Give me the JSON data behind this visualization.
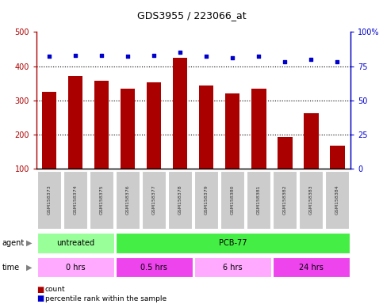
{
  "title": "GDS3955 / 223066_at",
  "samples": [
    "GSM158373",
    "GSM158374",
    "GSM158375",
    "GSM158376",
    "GSM158377",
    "GSM158378",
    "GSM158379",
    "GSM158380",
    "GSM158381",
    "GSM158382",
    "GSM158383",
    "GSM158384"
  ],
  "counts": [
    325,
    370,
    358,
    335,
    352,
    425,
    343,
    320,
    335,
    193,
    263,
    168
  ],
  "percentiles": [
    82,
    83,
    83,
    82,
    83,
    85,
    82,
    81,
    82,
    78,
    80,
    78
  ],
  "bar_color": "#AA0000",
  "dot_color": "#0000CC",
  "left_ylim": [
    100,
    500
  ],
  "left_yticks": [
    100,
    200,
    300,
    400,
    500
  ],
  "right_ylim": [
    0,
    100
  ],
  "right_yticks": [
    0,
    25,
    50,
    75,
    100
  ],
  "right_yticklabels": [
    "0",
    "25",
    "50",
    "75",
    "100%"
  ],
  "agent_groups": [
    {
      "label": "untreated",
      "start": 0,
      "end": 3,
      "color": "#99FF99"
    },
    {
      "label": "PCB-77",
      "start": 3,
      "end": 12,
      "color": "#44EE44"
    }
  ],
  "time_groups": [
    {
      "label": "0 hrs",
      "start": 0,
      "end": 3,
      "color": "#FFAAFF"
    },
    {
      "label": "0.5 hrs",
      "start": 3,
      "end": 6,
      "color": "#EE44EE"
    },
    {
      "label": "6 hrs",
      "start": 6,
      "end": 9,
      "color": "#FFAAFF"
    },
    {
      "label": "24 hrs",
      "start": 9,
      "end": 12,
      "color": "#EE44EE"
    }
  ],
  "bg_color": "#FFFFFF",
  "tick_label_bg": "#CCCCCC",
  "grid_yticks": [
    200,
    300,
    400
  ]
}
